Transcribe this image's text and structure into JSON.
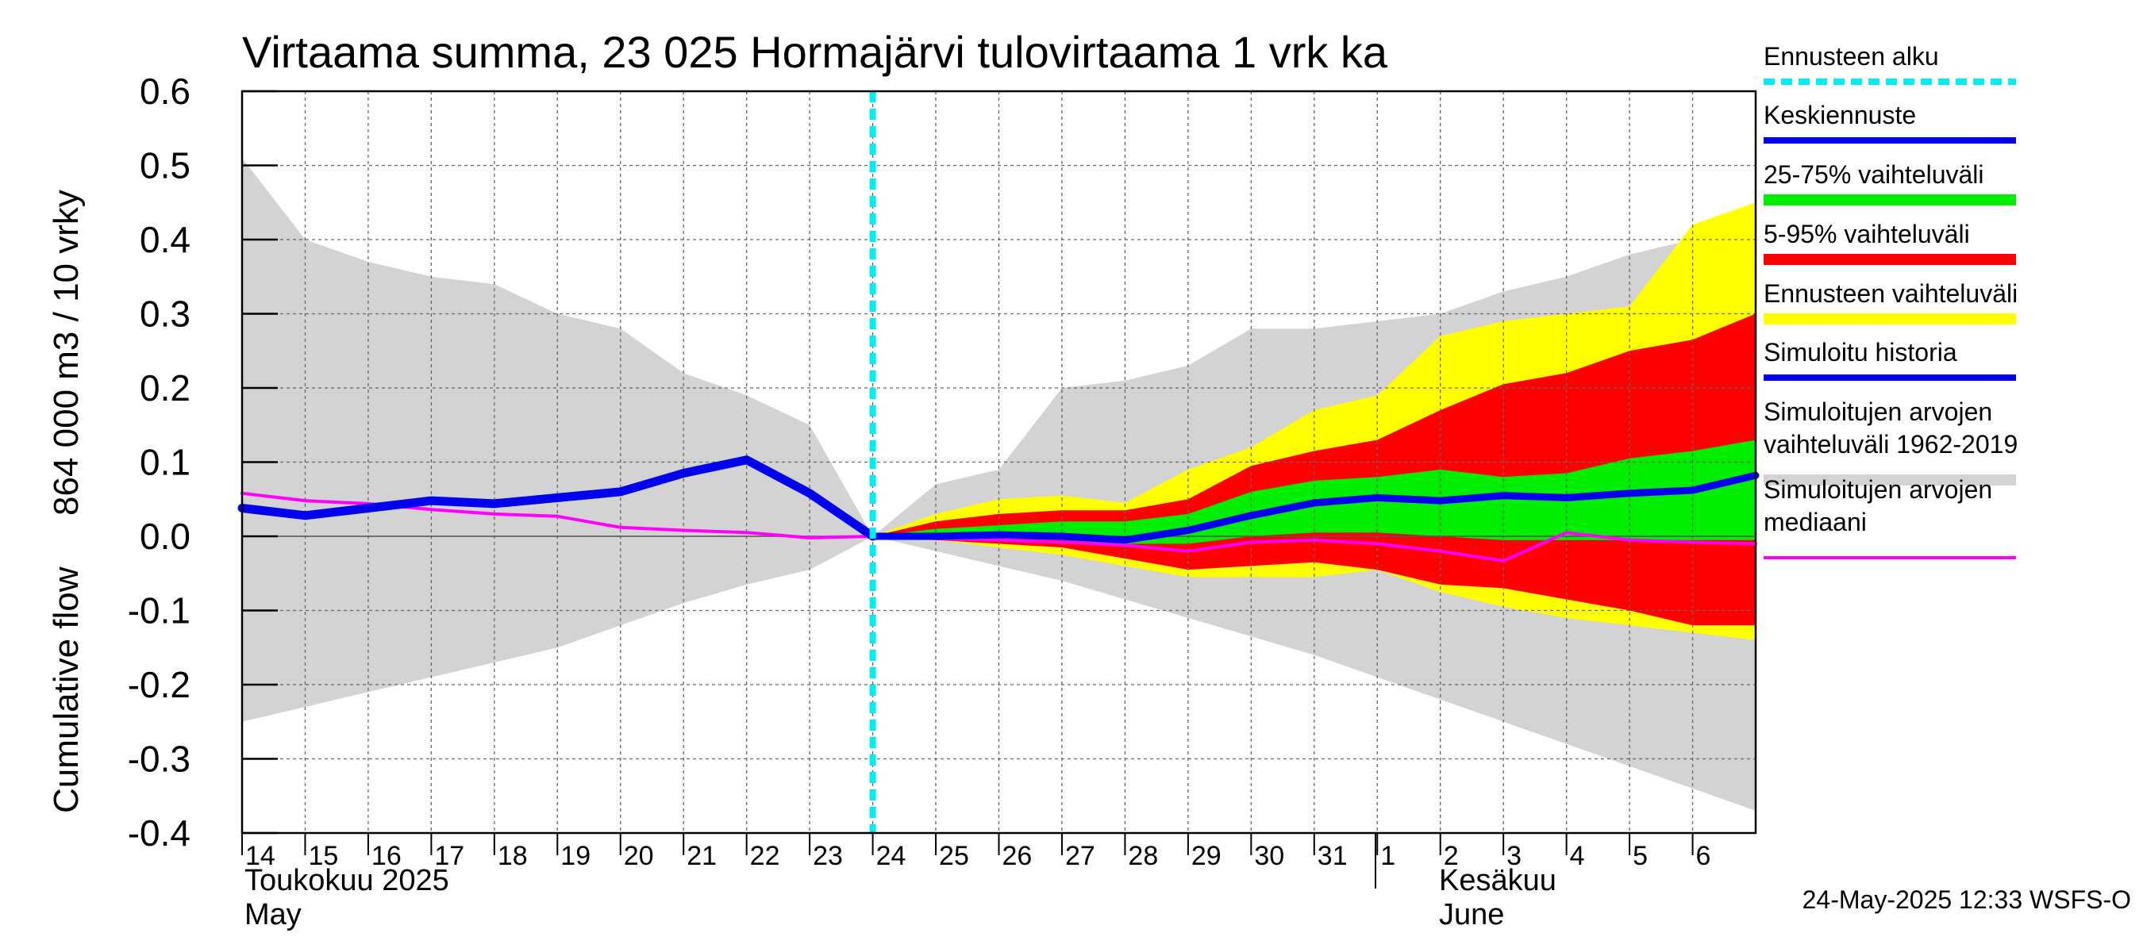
{
  "chart_data": {
    "type": "area",
    "title": "Virtaama summa, 23 025 Hormajärvi tulovirtaama 1 vrk ka",
    "ylabel_left": "Cumulative flow",
    "ylabel_right": "864 000 m3 / 10 vrky",
    "ylim": [
      -0.4,
      0.6
    ],
    "yticks": [
      "0.6",
      "0.5",
      "0.4",
      "0.3",
      "0.2",
      "0.1",
      "0.0",
      "-0.1",
      "-0.2",
      "-0.3",
      "-0.4"
    ],
    "x_dates": [
      "2025-05-14",
      "2025-05-15",
      "2025-05-16",
      "2025-05-17",
      "2025-05-18",
      "2025-05-19",
      "2025-05-20",
      "2025-05-21",
      "2025-05-22",
      "2025-05-23",
      "2025-05-24",
      "2025-05-25",
      "2025-05-26",
      "2025-05-27",
      "2025-05-28",
      "2025-05-29",
      "2025-05-30",
      "2025-05-31",
      "2025-06-01",
      "2025-06-02",
      "2025-06-03",
      "2025-06-04",
      "2025-06-05",
      "2025-06-06",
      "2025-06-07"
    ],
    "xtick_labels": [
      "14",
      "15",
      "16",
      "17",
      "18",
      "19",
      "20",
      "21",
      "22",
      "23",
      "24",
      "25",
      "26",
      "27",
      "28",
      "29",
      "30",
      "31",
      "1",
      "2",
      "3",
      "4",
      "5",
      "6"
    ],
    "month_labels": {
      "may_fi": "Toukokuu  2025",
      "may_en": "May",
      "june_fi": "Kesäkuu",
      "june_en": "June"
    },
    "forecast_start": "2025-05-24",
    "series": [
      {
        "name": "Simuloitujen arvojen vaihteluväli 1962-2019",
        "color": "#d3d3d3",
        "kind": "band",
        "upper": [
          0.51,
          0.4,
          0.37,
          0.35,
          0.34,
          0.3,
          0.28,
          0.22,
          0.19,
          0.15,
          0.0,
          0.07,
          0.09,
          0.2,
          0.21,
          0.23,
          0.28,
          0.28,
          0.29,
          0.3,
          0.33,
          0.35,
          0.38,
          0.4,
          0.4
        ],
        "lower": [
          -0.25,
          -0.23,
          -0.21,
          -0.19,
          -0.17,
          -0.15,
          -0.12,
          -0.09,
          -0.065,
          -0.045,
          0.0,
          -0.02,
          -0.04,
          -0.06,
          -0.085,
          -0.11,
          -0.135,
          -0.16,
          -0.19,
          -0.22,
          -0.25,
          -0.28,
          -0.31,
          -0.34,
          -0.37
        ]
      },
      {
        "name": "Ennusteen vaihteluväli",
        "color": "#ffff00",
        "kind": "band",
        "upper": [
          null,
          null,
          null,
          null,
          null,
          null,
          null,
          null,
          null,
          null,
          0.0,
          0.03,
          0.05,
          0.055,
          0.045,
          0.09,
          0.12,
          0.17,
          0.19,
          0.27,
          0.29,
          0.3,
          0.31,
          0.42,
          0.45
        ],
        "lower": [
          null,
          null,
          null,
          null,
          null,
          null,
          null,
          null,
          null,
          null,
          0.0,
          -0.005,
          -0.015,
          -0.025,
          -0.04,
          -0.055,
          -0.055,
          -0.055,
          -0.045,
          -0.075,
          -0.095,
          -0.11,
          -0.12,
          -0.13,
          -0.14
        ]
      },
      {
        "name": "5-95% vaihteluväli",
        "color": "#ff0000",
        "kind": "band",
        "upper": [
          null,
          null,
          null,
          null,
          null,
          null,
          null,
          null,
          null,
          null,
          0.0,
          0.02,
          0.03,
          0.035,
          0.035,
          0.05,
          0.095,
          0.115,
          0.13,
          0.17,
          0.205,
          0.22,
          0.25,
          0.265,
          0.3
        ],
        "lower": [
          null,
          null,
          null,
          null,
          null,
          null,
          null,
          null,
          null,
          null,
          0.0,
          -0.005,
          -0.01,
          -0.015,
          -0.03,
          -0.045,
          -0.04,
          -0.035,
          -0.045,
          -0.065,
          -0.07,
          -0.085,
          -0.1,
          -0.12,
          -0.12
        ]
      },
      {
        "name": "25-75% vaihteluväli",
        "color": "#00ee00",
        "kind": "band",
        "upper": [
          null,
          null,
          null,
          null,
          null,
          null,
          null,
          null,
          null,
          null,
          0.0,
          0.01,
          0.015,
          0.02,
          0.02,
          0.03,
          0.06,
          0.075,
          0.08,
          0.09,
          0.08,
          0.085,
          0.105,
          0.115,
          0.13
        ],
        "lower": [
          null,
          null,
          null,
          null,
          null,
          null,
          null,
          null,
          null,
          null,
          0.0,
          0.0,
          0.0,
          -0.005,
          -0.01,
          -0.01,
          0.0,
          0.005,
          0.005,
          0.0,
          -0.005,
          -0.005,
          -0.005,
          -0.005,
          -0.005
        ]
      },
      {
        "name": "Simuloitujen arvojen mediaani",
        "color": "#ff00ff",
        "kind": "line",
        "values": [
          0.058,
          0.048,
          0.044,
          0.036,
          0.03,
          0.027,
          0.012,
          0.008,
          0.005,
          -0.002,
          0.0,
          -0.003,
          -0.005,
          -0.008,
          -0.012,
          -0.02,
          -0.008,
          -0.005,
          -0.01,
          -0.02,
          -0.033,
          0.005,
          -0.005,
          -0.008,
          -0.01
        ]
      },
      {
        "name": "Simuloitu historia",
        "color": "#0000ee",
        "kind": "line",
        "values": [
          0.038,
          0.028,
          0.038,
          0.048,
          0.044,
          0.052,
          0.06,
          0.085,
          0.103,
          0.058,
          0.0,
          null,
          null,
          null,
          null,
          null,
          null,
          null,
          null,
          null,
          null,
          null,
          null,
          null,
          null
        ]
      },
      {
        "name": "Keskiennuste",
        "color": "#0000ee",
        "kind": "line",
        "values": [
          null,
          null,
          null,
          null,
          null,
          null,
          null,
          null,
          null,
          null,
          0.0,
          0.0,
          0.002,
          0.0,
          -0.005,
          0.008,
          0.028,
          0.045,
          0.052,
          0.048,
          0.055,
          0.052,
          0.058,
          0.062,
          0.082
        ]
      }
    ],
    "legend": [
      {
        "label": "Ennusteen alku",
        "color": "#00eeee",
        "style": "dashed"
      },
      {
        "label": "Keskiennuste",
        "color": "#0000ee",
        "style": "line"
      },
      {
        "label": "25-75% vaihteluväli",
        "color": "#00ee00",
        "style": "band"
      },
      {
        "label": "5-95% vaihteluväli",
        "color": "#ff0000",
        "style": "band"
      },
      {
        "label": "Ennusteen vaihteluväli",
        "color": "#ffff00",
        "style": "band"
      },
      {
        "label": "Simuloitu historia",
        "color": "#0000ee",
        "style": "line"
      },
      {
        "label": "Simuloitujen arvojen vaihteluväli 1962-2019",
        "label_line1": "Simuloitujen arvojen",
        "label_line2": "vaihteluväli 1962-2019",
        "color": "#d3d3d3",
        "style": "band"
      },
      {
        "label": "Simuloitujen arvojen mediaani",
        "label_line1": "Simuloitujen arvojen",
        "label_line2": "mediaani",
        "color": "#ff00ff",
        "style": "line"
      }
    ],
    "legend_placement": "right",
    "grid": true,
    "timestamp": "24-May-2025 12:33 WSFS-O"
  }
}
